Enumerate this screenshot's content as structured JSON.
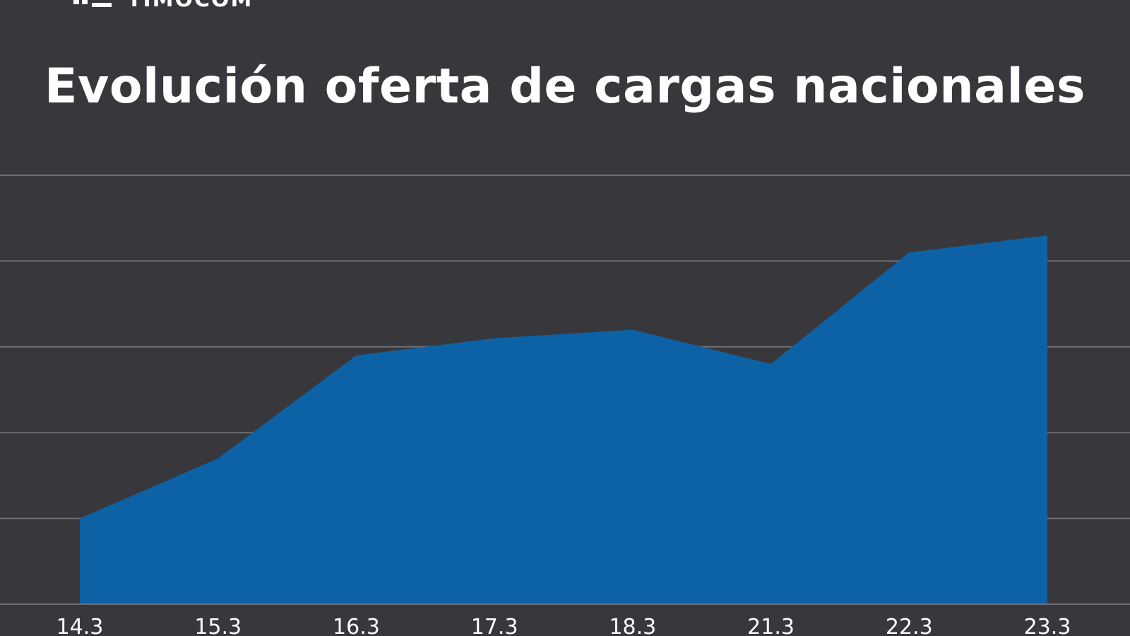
{
  "brand": {
    "name": "TIMOCOM",
    "logo_icon": "timocom-logo-icon"
  },
  "colors": {
    "background": "#37373c",
    "area_fill": "#0d62a5",
    "gridline": "#6e6e74",
    "text": "#ffffff"
  },
  "chart_data": {
    "type": "area",
    "title": "Evolución oferta de cargas nacionales",
    "xlabel": "",
    "ylabel": "",
    "categories": [
      "14.3",
      "15.3",
      "16.3",
      "17.3",
      "18.3",
      "21.3",
      "22.3",
      "23.3"
    ],
    "values": [
      1.0,
      1.7,
      2.9,
      3.1,
      3.2,
      2.8,
      4.1,
      4.3
    ],
    "ylim": [
      0,
      5
    ],
    "grid": true,
    "legend": "none"
  }
}
